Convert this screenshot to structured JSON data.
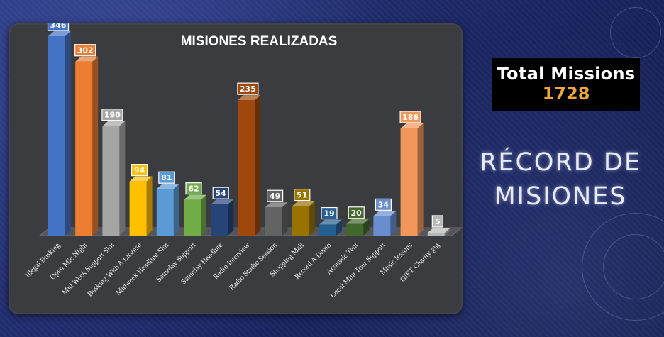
{
  "panel": {
    "title": "MISIONES REALIZADAS"
  },
  "summary": {
    "total_label": "Total Missions",
    "total_value": "1728",
    "record_line1": "RÉCORD DE",
    "record_line2": "MISIONES"
  },
  "chart_data": {
    "type": "bar",
    "title": "MISIONES REALIZADAS",
    "xlabel": "",
    "ylabel": "",
    "ylim": [
      0,
      346
    ],
    "grid": false,
    "legend": "none",
    "categories": [
      "Illegal Busking",
      "Open Mic Night",
      "Mid Week Support Slot",
      "Busking With A License",
      "Midweek Headline Slot",
      "Saturday Support",
      "Saturday Headline",
      "Radio Interview",
      "Radio Studio Session",
      "Shopping Mall",
      "Record A Demo",
      "Acoustic Tent",
      "Local Mini Tour Support",
      "Music lessons",
      "GIFT Charity gig"
    ],
    "values": [
      346,
      302,
      190,
      94,
      81,
      62,
      54,
      235,
      49,
      51,
      19,
      20,
      34,
      186,
      5
    ],
    "colors": [
      "#4472c4",
      "#ed7d31",
      "#a5a5a5",
      "#ffc000",
      "#5b9bd5",
      "#70ad47",
      "#264478",
      "#9e480e",
      "#636363",
      "#997300",
      "#255e91",
      "#43682b",
      "#698ed0",
      "#f1975a",
      "#b7b7b7"
    ]
  }
}
